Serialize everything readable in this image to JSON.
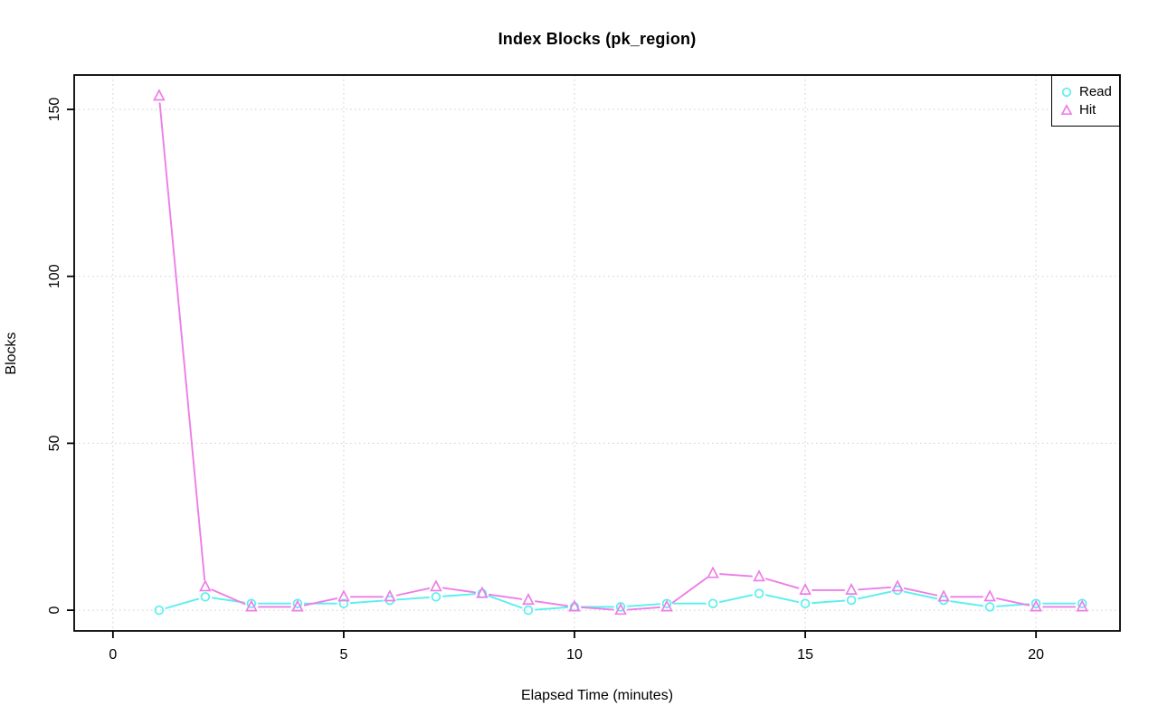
{
  "chart_data": {
    "type": "line",
    "title": "Index Blocks (pk_region)",
    "xlabel": "Elapsed Time (minutes)",
    "ylabel": "Blocks",
    "x": [
      1,
      2,
      3,
      4,
      5,
      6,
      7,
      8,
      9,
      10,
      11,
      12,
      13,
      14,
      15,
      16,
      17,
      18,
      19,
      20,
      21
    ],
    "series": [
      {
        "name": "Read",
        "marker": "circle",
        "color": "#59EFEF",
        "values": [
          0,
          4,
          2,
          2,
          2,
          3,
          4,
          5,
          0,
          1,
          1,
          2,
          2,
          5,
          2,
          3,
          6,
          3,
          1,
          2,
          2
        ]
      },
      {
        "name": "Hit",
        "marker": "triangle",
        "color": "#EE7DE9",
        "values": [
          154,
          7,
          1,
          1,
          4,
          4,
          7,
          5,
          3,
          1,
          0,
          1,
          11,
          10,
          6,
          6,
          7,
          4,
          4,
          1,
          1
        ]
      }
    ],
    "x_ticks": [
      0,
      5,
      10,
      15,
      20
    ],
    "y_ticks": [
      0,
      50,
      100,
      150
    ],
    "xlim": [
      -0.84,
      21.82
    ],
    "ylim": [
      -6.2,
      160.3
    ],
    "grid": "dotted",
    "grid_color": "#CDCDCD",
    "frame_color": "#000000",
    "legend_position": "top-right",
    "line_style": "segments-with-marker-gaps"
  },
  "legend": {
    "items": [
      {
        "label": "Read",
        "marker": "circle-icon"
      },
      {
        "label": "Hit",
        "marker": "triangle-icon"
      }
    ]
  }
}
